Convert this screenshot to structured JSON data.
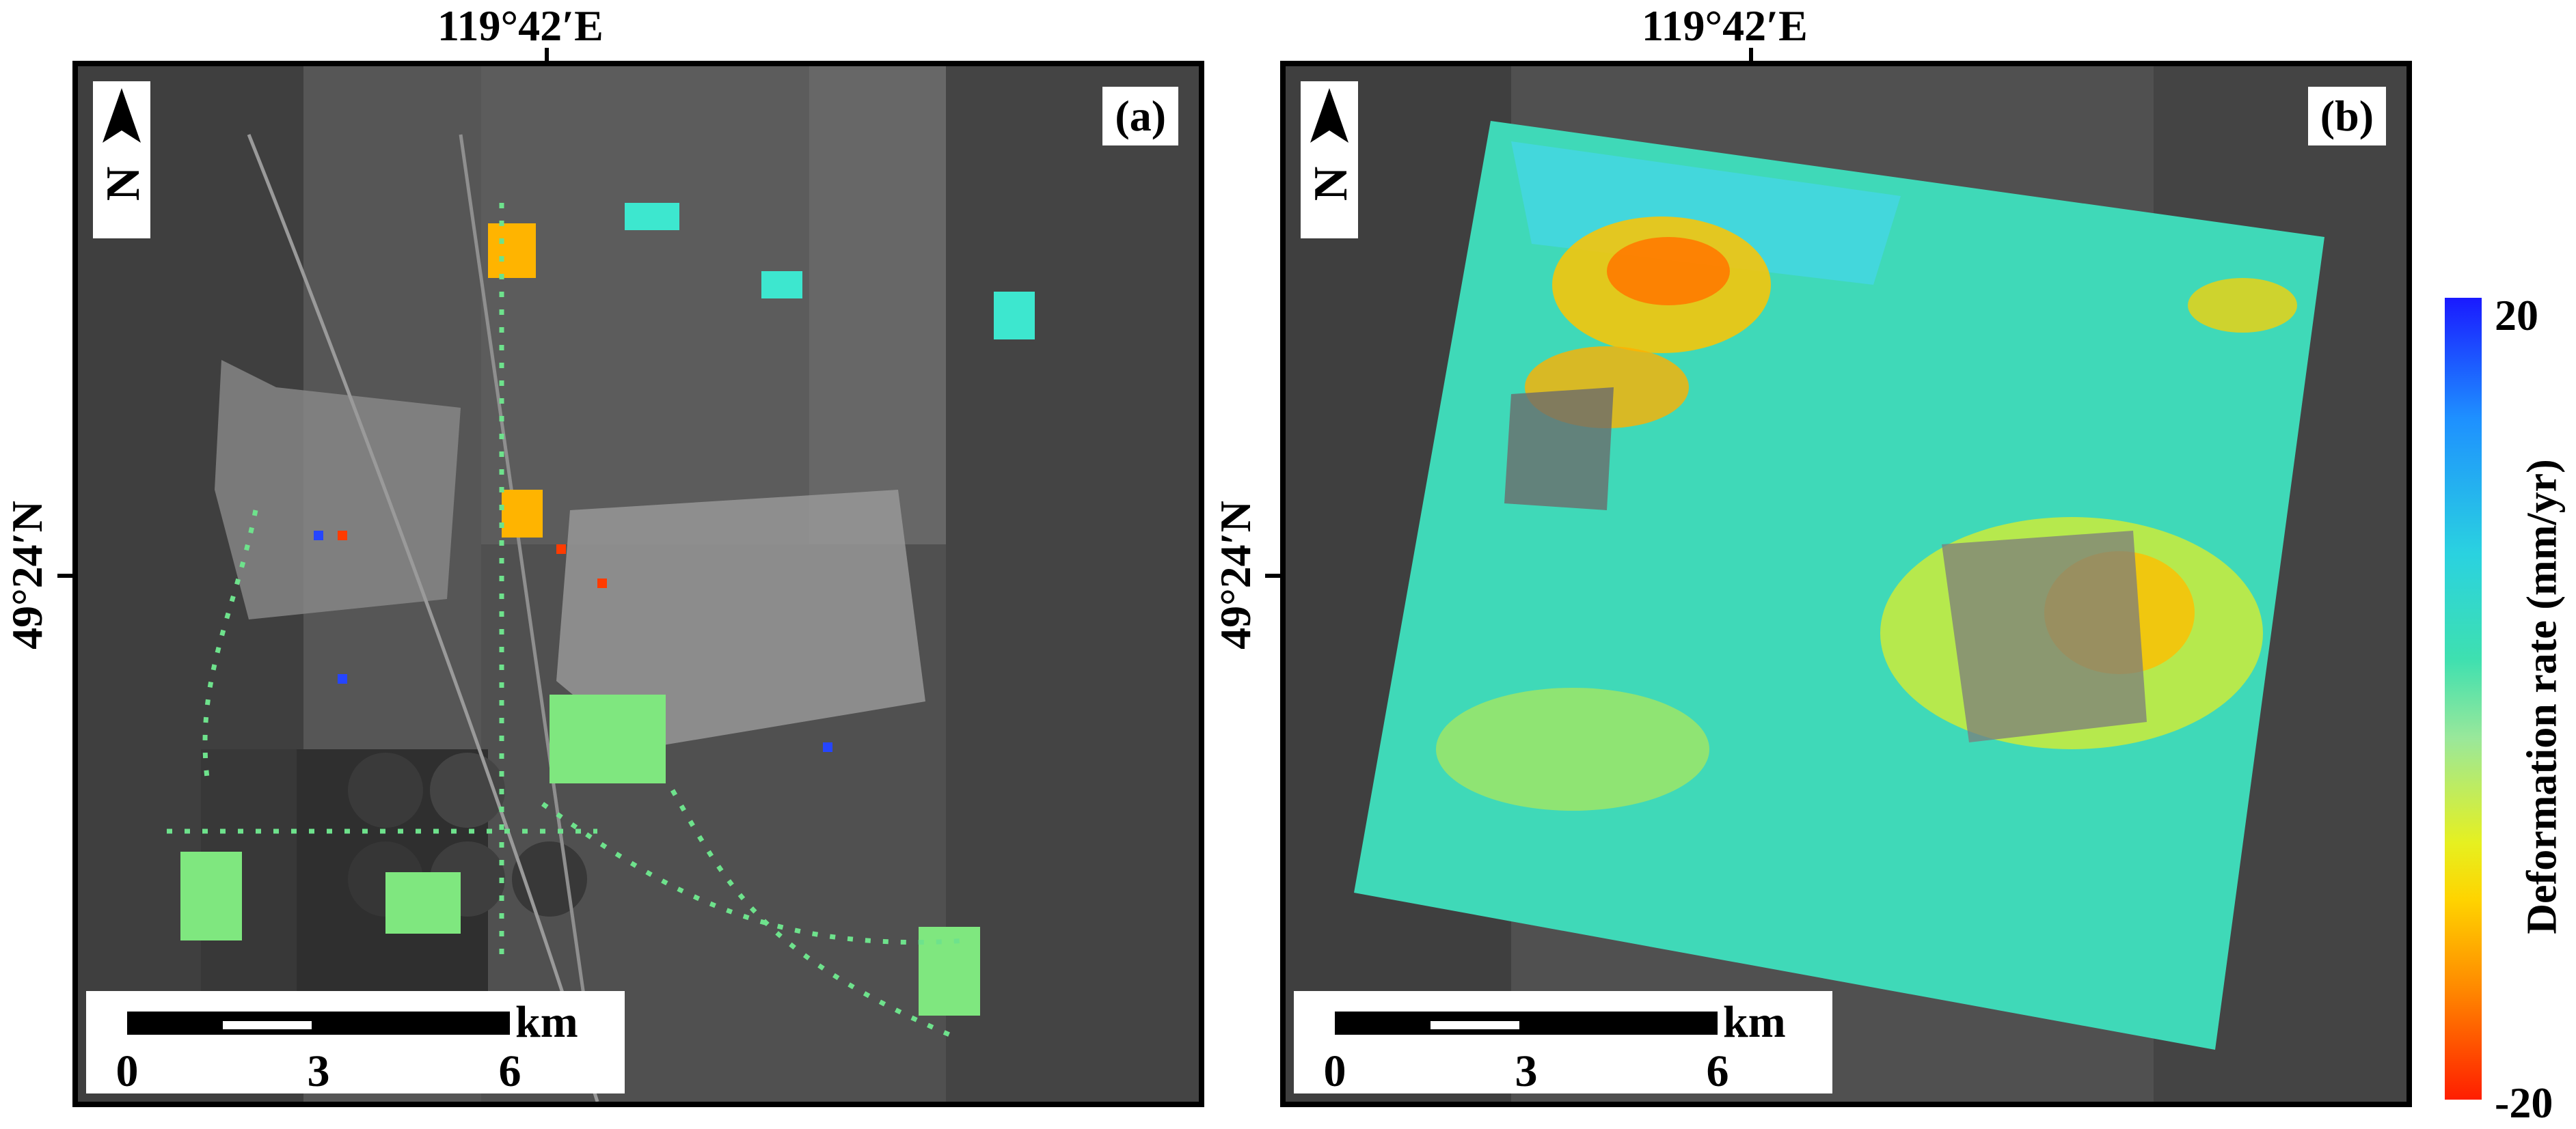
{
  "coordinates": {
    "longitude_label": "119°42′E",
    "latitude_label": "49°24′N"
  },
  "panels": [
    {
      "id": "a",
      "tag": "(a)",
      "content": "sparse deformation points over grayscale satellite image"
    },
    {
      "id": "b",
      "tag": "(b)",
      "content": "dense deformation-rate raster over grayscale satellite image"
    }
  ],
  "north_arrow": {
    "letter": "N"
  },
  "scale_bar": {
    "unit": "km",
    "ticks": [
      "0",
      "3",
      "6"
    ]
  },
  "colorbar": {
    "label": "Deformation rate (mm/yr)",
    "max_label": "20",
    "min_label": "-20",
    "range": [
      -20,
      20
    ],
    "colors": {
      "high": "#1a1aff",
      "mid_high": "#2ad2e0",
      "mid": "#9ae89a",
      "mid_low": "#ffd400",
      "low": "#ff1e00"
    }
  }
}
